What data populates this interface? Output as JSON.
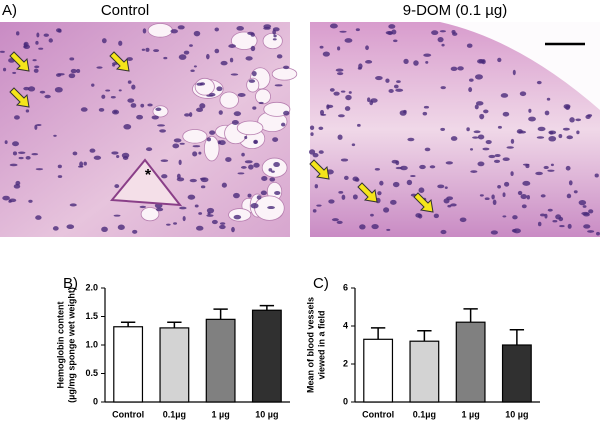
{
  "panel_a": {
    "label": "A)",
    "images": [
      {
        "title": "Control",
        "mark": "*"
      },
      {
        "title": "9-DOM (0.1 µg)"
      }
    ]
  },
  "chart_data": [
    {
      "type": "bar",
      "label": "B)",
      "ylabel": [
        "Hemoglobin content",
        "(µg/mg sponge wet weight)"
      ],
      "categories": [
        "Control",
        "0.1µg",
        "1 µg",
        "10 µg"
      ],
      "values": [
        1.32,
        1.3,
        1.45,
        1.61
      ],
      "errors": [
        0.08,
        0.1,
        0.18,
        0.08
      ],
      "colors": [
        "#ffffff",
        "#d3d3d3",
        "#808080",
        "#303030"
      ],
      "ylim": [
        0,
        2
      ],
      "yticks": [
        0,
        0.5,
        {
          "value": 1,
          "label": "1.0"
        },
        1.5,
        {
          "value": 2,
          "label": "2.0"
        }
      ]
    },
    {
      "type": "bar",
      "label": "C)",
      "ylabel": [
        "Mean of blood vessels",
        "viewed in a field"
      ],
      "categories": [
        "Control",
        "0.1µg",
        "1 µg",
        "10 µg"
      ],
      "values": [
        3.3,
        3.2,
        4.2,
        3.0
      ],
      "errors": [
        0.6,
        0.55,
        0.7,
        0.8
      ],
      "colors": [
        "#ffffff",
        "#d3d3d3",
        "#808080",
        "#303030"
      ],
      "ylim": [
        0,
        6
      ],
      "yticks": [
        0,
        2,
        4,
        6
      ]
    }
  ]
}
